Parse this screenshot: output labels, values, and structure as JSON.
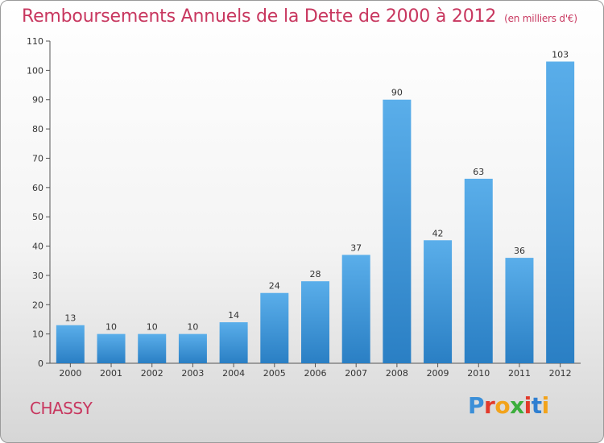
{
  "title": "Remboursements Annuels de la Dette de 2000 à 2012",
  "unit": "(en milliers d'€)",
  "commune": "CHASSY",
  "logo": {
    "letters": [
      "P",
      "r",
      "o",
      "x",
      "i",
      "t",
      "i"
    ],
    "colors": [
      "#3b8fd8",
      "#e23a2b",
      "#f2a31b",
      "#3cae3c",
      "#e23a2b",
      "#2f7fd1",
      "#f2a31b"
    ]
  },
  "chart_data": {
    "type": "bar",
    "title": "Remboursements Annuels de la Dette de 2000 à 2012",
    "xlabel": "",
    "ylabel": "",
    "categories": [
      "2000",
      "2001",
      "2002",
      "2003",
      "2004",
      "2005",
      "2006",
      "2007",
      "2008",
      "2009",
      "2010",
      "2011",
      "2012"
    ],
    "values": [
      13,
      10,
      10,
      10,
      14,
      24,
      28,
      37,
      90,
      42,
      63,
      36,
      103
    ],
    "ylim": [
      0,
      110
    ],
    "yticks": [
      0,
      10,
      20,
      30,
      40,
      50,
      60,
      70,
      80,
      90,
      100,
      110
    ],
    "grid": false,
    "legend": "none",
    "bar_color_top": "#5aaeea",
    "bar_color_bottom": "#2a7fc4"
  }
}
